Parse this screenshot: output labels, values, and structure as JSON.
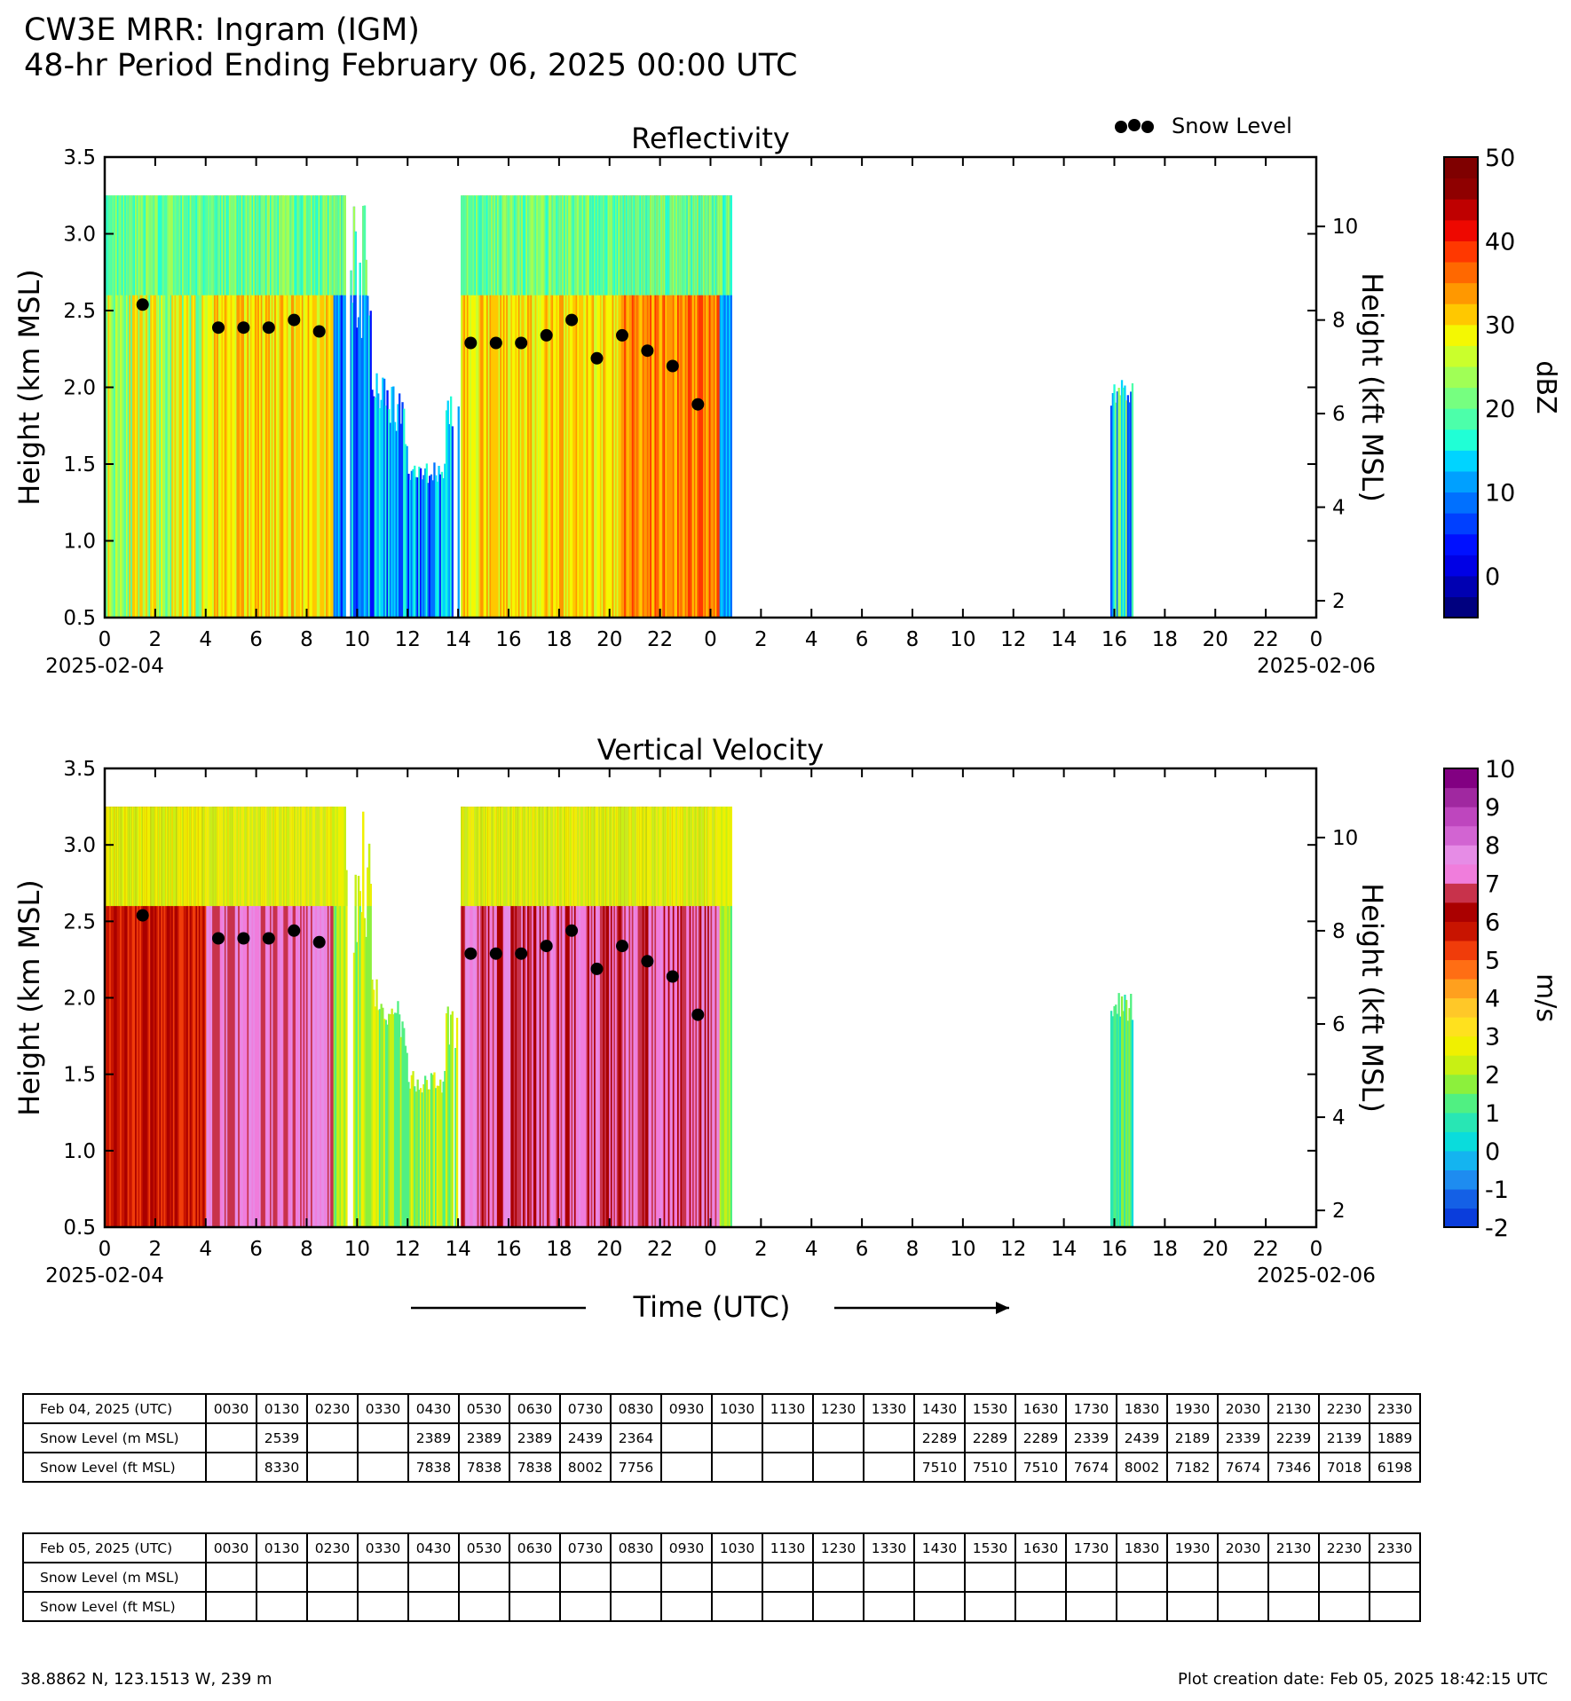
{
  "header": {
    "line1": "CW3E MRR: Ingram (IGM)",
    "line2": "48-hr Period Ending February 06, 2025 00:00 UTC"
  },
  "legend": {
    "marker_label": "Snow Level"
  },
  "chart_data": [
    {
      "type": "heatmap",
      "title": "Reflectivity",
      "ylabel": "Height (km MSL)",
      "y2label": "Height (kft MSL)",
      "xlabel": "",
      "ylim": [
        0.5,
        3.5
      ],
      "yticks": [
        "0.5",
        "1.0",
        "1.5",
        "2.0",
        "2.5",
        "3.0",
        "3.5"
      ],
      "y2ticks": [
        "2",
        "4",
        "6",
        "8",
        "10"
      ],
      "xticks": [
        "0",
        "2",
        "4",
        "6",
        "8",
        "10",
        "12",
        "14",
        "16",
        "18",
        "20",
        "22",
        "0",
        "2",
        "4",
        "6",
        "8",
        "10",
        "12",
        "14",
        "16",
        "18",
        "20",
        "22",
        "0"
      ],
      "xlim_hours": [
        0,
        48
      ],
      "date_start": "2025-02-04",
      "date_end": "2025-02-06",
      "colorbar": {
        "label": "dBZ",
        "range": [
          -5,
          50
        ],
        "ticks": [
          "0",
          "10",
          "20",
          "30",
          "40",
          "50"
        ],
        "colors": [
          "#00007f",
          "#0000b2",
          "#0000e5",
          "#0010ff",
          "#0040ff",
          "#0070ff",
          "#00a0ff",
          "#00d4ff",
          "#20ffd6",
          "#4cffaa",
          "#76ff80",
          "#a0ff56",
          "#caff2c",
          "#f4f802",
          "#ffc800",
          "#ff9800",
          "#ff6800",
          "#ff3800",
          "#ee0800",
          "#bf0000",
          "#8f0000",
          "#7f0000"
        ]
      },
      "snow_level_points": [
        {
          "hour": 1.5,
          "km": 2.539
        },
        {
          "hour": 4.5,
          "km": 2.389
        },
        {
          "hour": 5.5,
          "km": 2.389
        },
        {
          "hour": 6.5,
          "km": 2.389
        },
        {
          "hour": 7.5,
          "km": 2.439
        },
        {
          "hour": 8.5,
          "km": 2.364
        },
        {
          "hour": 14.5,
          "km": 2.289
        },
        {
          "hour": 15.5,
          "km": 2.289
        },
        {
          "hour": 16.5,
          "km": 2.289
        },
        {
          "hour": 17.5,
          "km": 2.339
        },
        {
          "hour": 18.5,
          "km": 2.439
        },
        {
          "hour": 19.5,
          "km": 2.189
        },
        {
          "hour": 20.5,
          "km": 2.339
        },
        {
          "hour": 21.5,
          "km": 2.239
        },
        {
          "hour": 22.5,
          "km": 2.139
        },
        {
          "hour": 23.5,
          "km": 1.889
        }
      ]
    },
    {
      "type": "heatmap",
      "title": "Vertical Velocity",
      "ylabel": "Height (km MSL)",
      "y2label": "Height (kft MSL)",
      "xlabel": "Time (UTC)",
      "ylim": [
        0.5,
        3.5
      ],
      "yticks": [
        "0.5",
        "1.0",
        "1.5",
        "2.0",
        "2.5",
        "3.0",
        "3.5"
      ],
      "y2ticks": [
        "2",
        "4",
        "6",
        "8",
        "10"
      ],
      "xticks": [
        "0",
        "2",
        "4",
        "6",
        "8",
        "10",
        "12",
        "14",
        "16",
        "18",
        "20",
        "22",
        "0",
        "2",
        "4",
        "6",
        "8",
        "10",
        "12",
        "14",
        "16",
        "18",
        "20",
        "22",
        "0"
      ],
      "xlim_hours": [
        0,
        48
      ],
      "date_start": "2025-02-04",
      "date_end": "2025-02-06",
      "colorbar": {
        "label": "m/s",
        "range": [
          -2,
          10
        ],
        "ticks": [
          "-2",
          "-1",
          "0",
          "1",
          "2",
          "3",
          "4",
          "5",
          "6",
          "7",
          "8",
          "9",
          "10"
        ],
        "colors": [
          "#0a3ddc",
          "#1460e6",
          "#1e8cf0",
          "#14b4f0",
          "#0adcdc",
          "#28e6b4",
          "#50f082",
          "#8cf03c",
          "#c8f014",
          "#f0f000",
          "#ffe11e",
          "#ffc828",
          "#ffa01e",
          "#ff6e14",
          "#f03c0a",
          "#c81400",
          "#aa0000",
          "#c8324b",
          "#f07ddc",
          "#e68ce6",
          "#d264d2",
          "#be46be",
          "#a028a0",
          "#820082"
        ]
      },
      "snow_level_points": [
        {
          "hour": 1.5,
          "km": 2.539
        },
        {
          "hour": 4.5,
          "km": 2.389
        },
        {
          "hour": 5.5,
          "km": 2.389
        },
        {
          "hour": 6.5,
          "km": 2.389
        },
        {
          "hour": 7.5,
          "km": 2.439
        },
        {
          "hour": 8.5,
          "km": 2.364
        },
        {
          "hour": 14.5,
          "km": 2.289
        },
        {
          "hour": 15.5,
          "km": 2.289
        },
        {
          "hour": 16.5,
          "km": 2.289
        },
        {
          "hour": 17.5,
          "km": 2.339
        },
        {
          "hour": 18.5,
          "km": 2.439
        },
        {
          "hour": 19.5,
          "km": 2.189
        },
        {
          "hour": 20.5,
          "km": 2.339
        },
        {
          "hour": 21.5,
          "km": 2.239
        },
        {
          "hour": 22.5,
          "km": 2.139
        },
        {
          "hour": 23.5,
          "km": 1.889
        }
      ]
    },
    {
      "type": "table",
      "title": "Feb 04, 2025 (UTC)",
      "columns": [
        "0030",
        "0130",
        "0230",
        "0330",
        "0430",
        "0530",
        "0630",
        "0730",
        "0830",
        "0930",
        "1030",
        "1130",
        "1230",
        "1330",
        "1430",
        "1530",
        "1630",
        "1730",
        "1830",
        "1930",
        "2030",
        "2130",
        "2230",
        "2330"
      ],
      "rows": [
        {
          "label": "Snow Level (m MSL)",
          "values": [
            "",
            "2539",
            "",
            "",
            "2389",
            "2389",
            "2389",
            "2439",
            "2364",
            "",
            "",
            "",
            "",
            "",
            "2289",
            "2289",
            "2289",
            "2339",
            "2439",
            "2189",
            "2339",
            "2239",
            "2139",
            "1889"
          ]
        },
        {
          "label": "Snow Level (ft MSL)",
          "values": [
            "",
            "8330",
            "",
            "",
            "7838",
            "7838",
            "7838",
            "8002",
            "7756",
            "",
            "",
            "",
            "",
            "",
            "7510",
            "7510",
            "7510",
            "7674",
            "8002",
            "7182",
            "7674",
            "7346",
            "7018",
            "6198"
          ]
        }
      ]
    },
    {
      "type": "table",
      "title": "Feb 05, 2025 (UTC)",
      "columns": [
        "0030",
        "0130",
        "0230",
        "0330",
        "0430",
        "0530",
        "0630",
        "0730",
        "0830",
        "0930",
        "1030",
        "1130",
        "1230",
        "1330",
        "1430",
        "1530",
        "1630",
        "1730",
        "1830",
        "1930",
        "2030",
        "2130",
        "2230",
        "2330"
      ],
      "rows": [
        {
          "label": "Snow Level (m MSL)",
          "values": [
            "",
            "",
            "",
            "",
            "",
            "",
            "",
            "",
            "",
            "",
            "",
            "",
            "",
            "",
            "",
            "",
            "",
            "",
            "",
            "",
            "",
            "",
            "",
            ""
          ]
        },
        {
          "label": "Snow Level (ft MSL)",
          "values": [
            "",
            "",
            "",
            "",
            "",
            "",
            "",
            "",
            "",
            "",
            "",
            "",
            "",
            "",
            "",
            "",
            "",
            "",
            "",
            "",
            "",
            "",
            "",
            ""
          ]
        }
      ]
    }
  ],
  "footer": {
    "location": "38.8862 N, 123.1513 W, 239 m",
    "created": "Plot creation date: Feb 05, 2025 18:42:15 UTC"
  }
}
